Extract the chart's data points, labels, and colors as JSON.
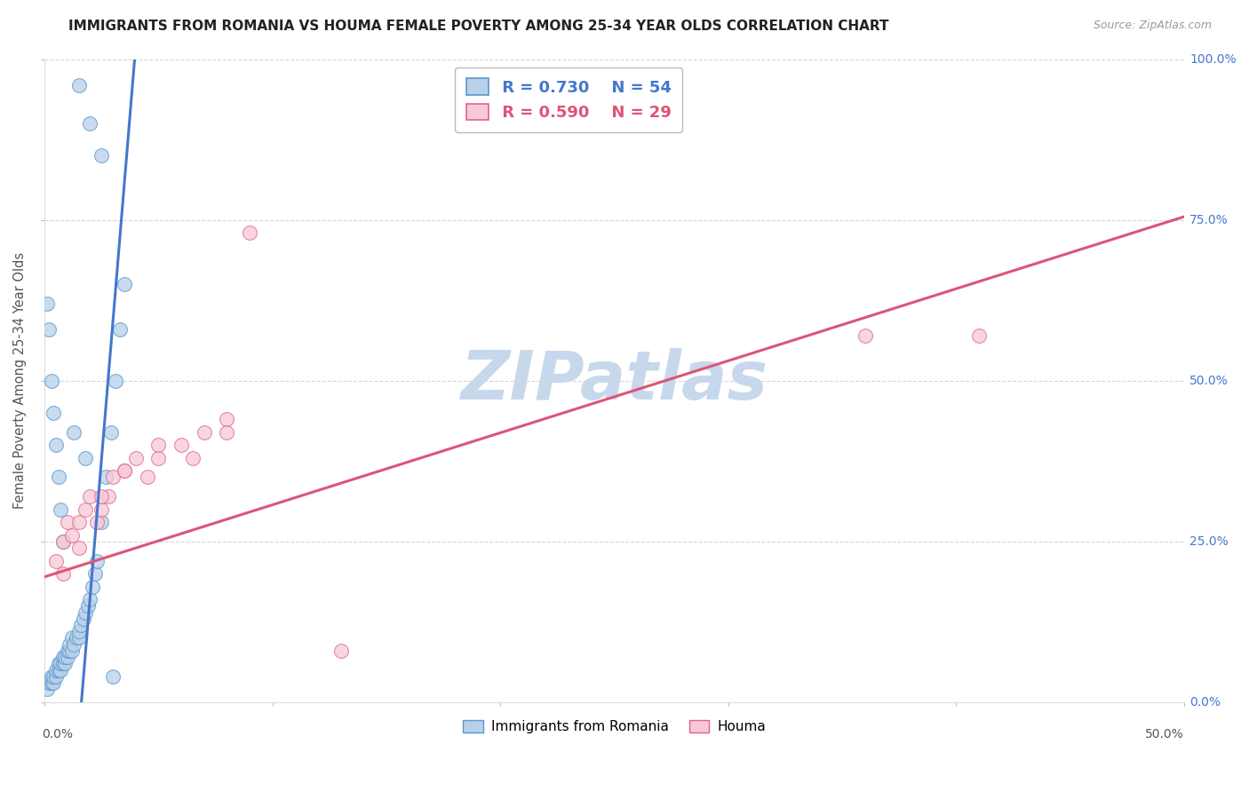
{
  "title": "IMMIGRANTS FROM ROMANIA VS HOUMA FEMALE POVERTY AMONG 25-34 YEAR OLDS CORRELATION CHART",
  "source": "Source: ZipAtlas.com",
  "ylabel": "Female Poverty Among 25-34 Year Olds",
  "legend_blue_label": "Immigrants from Romania",
  "legend_pink_label": "Houma",
  "blue_R": "R = 0.730",
  "blue_N": "N = 54",
  "pink_R": "R = 0.590",
  "pink_N": "N = 29",
  "blue_fill_color": "#b8d0ea",
  "pink_fill_color": "#f8c8d8",
  "blue_edge_color": "#5599cc",
  "pink_edge_color": "#dd6688",
  "blue_line_color": "#4477cc",
  "pink_line_color": "#dd5577",
  "watermark_color": "#c8d8ec",
  "xlim": [
    0.0,
    0.5
  ],
  "ylim": [
    0.0,
    1.0
  ],
  "blue_scatter_x": [
    0.001,
    0.002,
    0.003,
    0.003,
    0.004,
    0.004,
    0.005,
    0.005,
    0.006,
    0.006,
    0.007,
    0.007,
    0.008,
    0.008,
    0.009,
    0.009,
    0.01,
    0.01,
    0.011,
    0.011,
    0.012,
    0.012,
    0.013,
    0.014,
    0.015,
    0.015,
    0.016,
    0.017,
    0.018,
    0.019,
    0.02,
    0.021,
    0.022,
    0.023,
    0.025,
    0.027,
    0.029,
    0.031,
    0.033,
    0.035,
    0.001,
    0.002,
    0.003,
    0.004,
    0.005,
    0.006,
    0.007,
    0.008,
    0.015,
    0.02,
    0.025,
    0.013,
    0.018,
    0.03
  ],
  "blue_scatter_y": [
    0.02,
    0.03,
    0.03,
    0.04,
    0.03,
    0.04,
    0.04,
    0.05,
    0.05,
    0.06,
    0.05,
    0.06,
    0.06,
    0.07,
    0.06,
    0.07,
    0.07,
    0.08,
    0.08,
    0.09,
    0.08,
    0.1,
    0.09,
    0.1,
    0.1,
    0.11,
    0.12,
    0.13,
    0.14,
    0.15,
    0.16,
    0.18,
    0.2,
    0.22,
    0.28,
    0.35,
    0.42,
    0.5,
    0.58,
    0.65,
    0.62,
    0.58,
    0.5,
    0.45,
    0.4,
    0.35,
    0.3,
    0.25,
    0.96,
    0.9,
    0.85,
    0.42,
    0.38,
    0.04
  ],
  "pink_scatter_x": [
    0.005,
    0.008,
    0.01,
    0.012,
    0.015,
    0.018,
    0.02,
    0.023,
    0.025,
    0.028,
    0.03,
    0.035,
    0.04,
    0.045,
    0.05,
    0.06,
    0.07,
    0.08,
    0.09,
    0.008,
    0.015,
    0.025,
    0.035,
    0.05,
    0.065,
    0.08,
    0.36,
    0.41,
    0.13
  ],
  "pink_scatter_y": [
    0.22,
    0.25,
    0.28,
    0.26,
    0.28,
    0.3,
    0.32,
    0.28,
    0.3,
    0.32,
    0.35,
    0.36,
    0.38,
    0.35,
    0.38,
    0.4,
    0.42,
    0.44,
    0.73,
    0.2,
    0.24,
    0.32,
    0.36,
    0.4,
    0.38,
    0.42,
    0.57,
    0.57,
    0.08
  ],
  "blue_line_x": [
    0.015,
    0.04
  ],
  "blue_line_y": [
    -0.05,
    1.02
  ],
  "pink_line_x": [
    0.0,
    0.5
  ],
  "pink_line_y": [
    0.195,
    0.755
  ]
}
